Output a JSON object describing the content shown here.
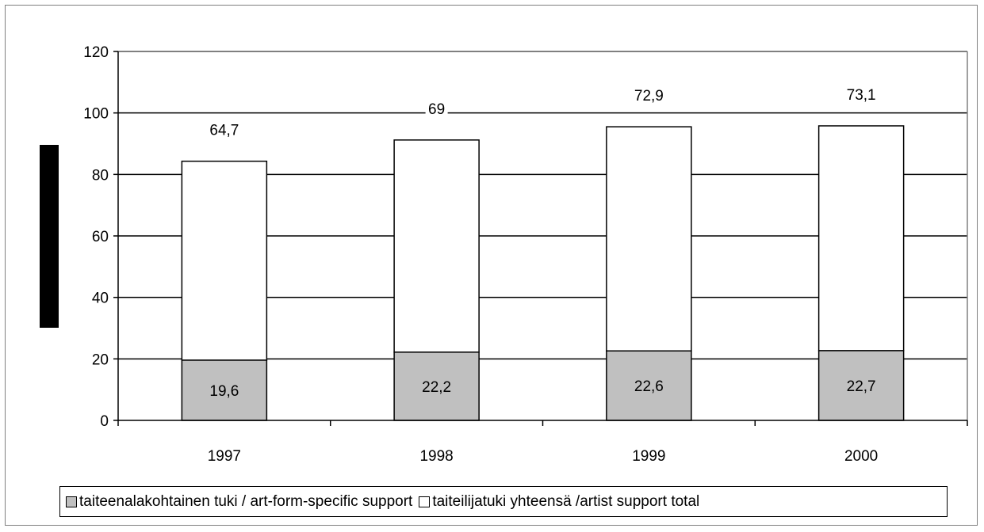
{
  "chart_data": {
    "type": "bar",
    "stacked": true,
    "categories": [
      "1997",
      "1998",
      "1999",
      "2000"
    ],
    "series": [
      {
        "name": "taiteenalakohtainen tuki / art-form-specific support",
        "values": [
          19.6,
          22.2,
          22.6,
          22.7
        ],
        "labels": [
          "19,6",
          "22,2",
          "22,6",
          "22,7"
        ],
        "color": "#c0c0c0"
      },
      {
        "name": "taiteilijatuki yhteensä /artist support total",
        "values": [
          64.7,
          69,
          72.9,
          73.1
        ],
        "labels": [
          "64,7",
          "69",
          "72,9",
          "73,1"
        ],
        "color": "#ffffff"
      }
    ],
    "yticks": [
      "0",
      "20",
      "40",
      "60",
      "80",
      "100",
      "120"
    ],
    "ylim": [
      0,
      120
    ],
    "grid": true,
    "legend_position": "bottom"
  }
}
